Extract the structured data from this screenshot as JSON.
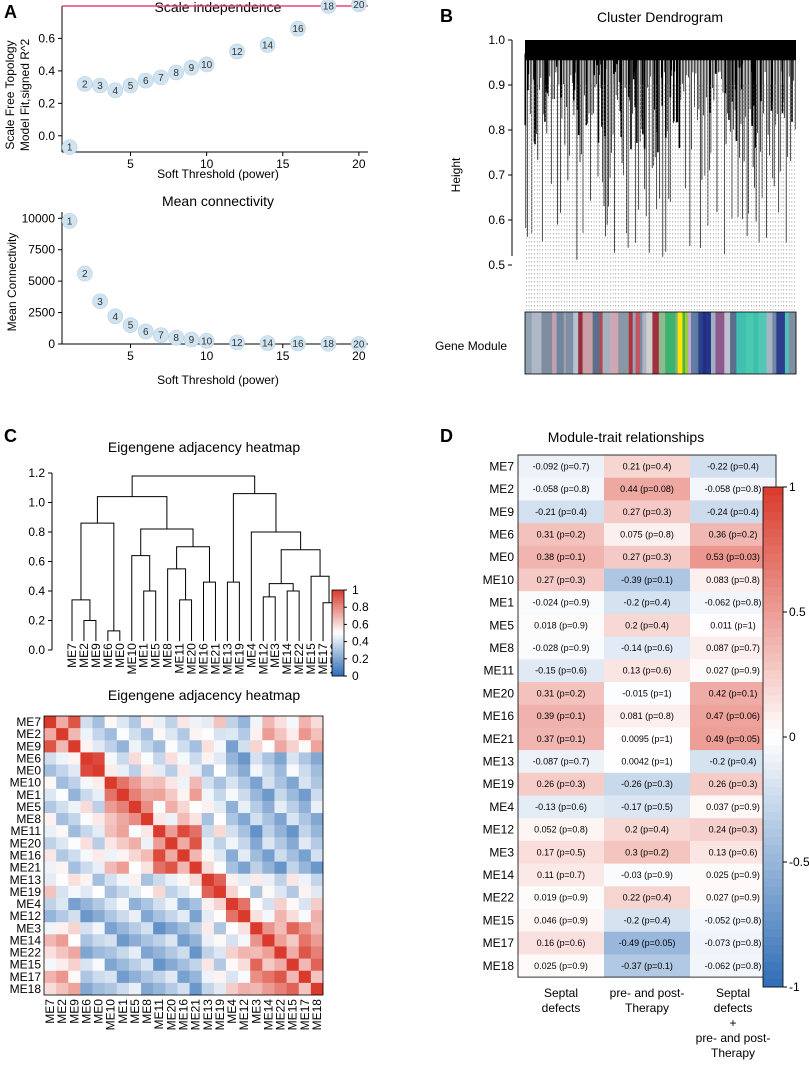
{
  "panel_letters": {
    "a": "A",
    "b": "B",
    "c": "C",
    "d": "D"
  },
  "chart_data": [
    {
      "id": "scale_independence",
      "type": "scatter",
      "title": "Scale independence",
      "xlabel": "Soft Threshold (power)",
      "ylabel_lines": [
        "Scale Free Topology",
        "Model Fit,signed R^2"
      ],
      "xlim": [
        0.5,
        20.6
      ],
      "ylim": [
        -0.1,
        0.8
      ],
      "xticks": [
        5,
        10,
        15,
        20
      ],
      "xticklabels": [
        "5",
        "10",
        "15",
        "20"
      ],
      "yticks": [
        0.0,
        0.2,
        0.4,
        0.6
      ],
      "yticklabels": [
        "0.0",
        "0.2",
        "0.4",
        "0.6"
      ],
      "threshold_line": 0.8,
      "threshold_color": "#e8467c",
      "point_color": "#cfe3f0",
      "points": [
        {
          "x": 1,
          "y": -0.07,
          "label": "1"
        },
        {
          "x": 2,
          "y": 0.32,
          "label": "2"
        },
        {
          "x": 3,
          "y": 0.31,
          "label": "3"
        },
        {
          "x": 4,
          "y": 0.28,
          "label": "4"
        },
        {
          "x": 5,
          "y": 0.31,
          "label": "5"
        },
        {
          "x": 6,
          "y": 0.34,
          "label": "6"
        },
        {
          "x": 7,
          "y": 0.36,
          "label": "7"
        },
        {
          "x": 8,
          "y": 0.39,
          "label": "8"
        },
        {
          "x": 9,
          "y": 0.42,
          "label": "9"
        },
        {
          "x": 10,
          "y": 0.44,
          "label": "10"
        },
        {
          "x": 12,
          "y": 0.52,
          "label": "12"
        },
        {
          "x": 14,
          "y": 0.56,
          "label": "14"
        },
        {
          "x": 16,
          "y": 0.66,
          "label": "16"
        },
        {
          "x": 18,
          "y": 0.8,
          "label": "18"
        },
        {
          "x": 20,
          "y": 0.81,
          "label": "20"
        }
      ]
    },
    {
      "id": "mean_connectivity",
      "type": "scatter",
      "title": "Mean connectivity",
      "xlabel": "Soft Threshold (power)",
      "ylabel_lines": [
        "Mean Connectivity"
      ],
      "xlim": [
        0.5,
        20.6
      ],
      "ylim": [
        0,
        10500
      ],
      "xticks": [
        5,
        10,
        15,
        20
      ],
      "xticklabels": [
        "5",
        "10",
        "15",
        "20"
      ],
      "yticks": [
        0,
        2500,
        5000,
        7500,
        10000
      ],
      "yticklabels": [
        "0",
        "2500",
        "5000",
        "7500",
        "10000"
      ],
      "point_color": "#cfe3f0",
      "points": [
        {
          "x": 1,
          "y": 9800,
          "label": "1"
        },
        {
          "x": 2,
          "y": 5600,
          "label": "2"
        },
        {
          "x": 3,
          "y": 3400,
          "label": "3"
        },
        {
          "x": 4,
          "y": 2200,
          "label": "4"
        },
        {
          "x": 5,
          "y": 1500,
          "label": "5"
        },
        {
          "x": 6,
          "y": 1000,
          "label": "6"
        },
        {
          "x": 7,
          "y": 700,
          "label": "7"
        },
        {
          "x": 8,
          "y": 500,
          "label": "8"
        },
        {
          "x": 9,
          "y": 350,
          "label": "9"
        },
        {
          "x": 10,
          "y": 250,
          "label": "10"
        },
        {
          "x": 12,
          "y": 130,
          "label": "12"
        },
        {
          "x": 14,
          "y": 70,
          "label": "14"
        },
        {
          "x": 16,
          "y": 40,
          "label": "16"
        },
        {
          "x": 18,
          "y": 20,
          "label": "18"
        },
        {
          "x": 20,
          "y": 10,
          "label": "20"
        }
      ]
    },
    {
      "id": "cluster_dendrogram",
      "type": "dendrogram",
      "title": "Cluster Dendrogram",
      "ylabel": "Height",
      "ylim": [
        0.4,
        1.0
      ],
      "yticks": [
        0.5,
        0.6,
        0.7,
        0.8,
        0.9,
        1.0
      ],
      "yticklabels": [
        "0.5",
        "0.6",
        "0.7",
        "0.8",
        "0.9",
        "1.0"
      ],
      "color_bar_label": "Gene Module",
      "module_colors": [
        "#8fa3b0",
        "#b0b8c8",
        "#7f8da0",
        "#c5a0b0",
        "#6f86a0",
        "#a0a0a0",
        "#808fa8",
        "#b5c2cf",
        "#9b2c3c",
        "#c9a0a8",
        "#5d6e8a",
        "#b4464f",
        "#a6b1be",
        "#d1a6b4",
        "#8a98a6",
        "#b22f3f",
        "#94a8b8",
        "#c45363",
        "#7b8ba0",
        "#aab5c3",
        "#d0d0d0",
        "#a03040",
        "#8fbc8f",
        "#3cb371",
        "#7fb07f",
        "#ffe600",
        "#4caf50",
        "#9acd32",
        "#c3aacb",
        "#5f7fa8",
        "#5e7a9a",
        "#2a3f8f",
        "#1f2f7a",
        "#27348b",
        "#a0b0c0",
        "#8e5a8e",
        "#c0c0d0",
        "#5a6e8e",
        "#40c0b0",
        "#48c9b0",
        "#3fbfad",
        "#52c7b8",
        "#a9b4c2",
        "#6e8aa8",
        "#2d3c8c",
        "#50c0b8",
        "#7d8fa3"
      ]
    },
    {
      "id": "eigengene_dendrogram",
      "type": "dendrogram",
      "title": "Eigengene adjacency heatmap",
      "ylim": [
        0,
        1.2
      ],
      "yticks": [
        0.0,
        0.2,
        0.4,
        0.6,
        0.8,
        1.0,
        1.2
      ],
      "yticklabels": [
        "0.0",
        "0.2",
        "0.4",
        "0.6",
        "0.8",
        "1.0",
        "1.2"
      ],
      "leaves": [
        "ME7",
        "ME2",
        "ME9",
        "ME6",
        "ME0",
        "ME10",
        "ME1",
        "ME5",
        "ME8",
        "ME11",
        "ME20",
        "ME16",
        "ME21",
        "ME13",
        "ME19",
        "ME4",
        "ME12",
        "ME3",
        "ME14",
        "ME22",
        "ME15",
        "ME17",
        "ME18"
      ],
      "merges": [
        {
          "a": "L1",
          "b": "L2",
          "h": 0.2
        },
        {
          "a": "L0",
          "b": "M0",
          "h": 0.34
        },
        {
          "a": "L3",
          "b": "L4",
          "h": 0.13
        },
        {
          "a": "M1",
          "b": "M2",
          "h": 0.86
        },
        {
          "a": "L6",
          "b": "L7",
          "h": 0.4
        },
        {
          "a": "L5",
          "b": "M4",
          "h": 0.64
        },
        {
          "a": "L9",
          "b": "L10",
          "h": 0.34
        },
        {
          "a": "L8",
          "b": "M6",
          "h": 0.55
        },
        {
          "a": "L11",
          "b": "L12",
          "h": 0.46
        },
        {
          "a": "M7",
          "b": "M8",
          "h": 0.7
        },
        {
          "a": "M5",
          "b": "M9",
          "h": 0.82
        },
        {
          "a": "M3",
          "b": "M10",
          "h": 1.04
        },
        {
          "a": "L13",
          "b": "L14",
          "h": 0.46
        },
        {
          "a": "L16",
          "b": "L17",
          "h": 0.36
        },
        {
          "a": "L18",
          "b": "L19",
          "h": 0.4
        },
        {
          "a": "M13",
          "b": "M14",
          "h": 0.45
        },
        {
          "a": "L21",
          "b": "L22",
          "h": 0.32
        },
        {
          "a": "L20",
          "b": "M16",
          "h": 0.5
        },
        {
          "a": "M15",
          "b": "M17",
          "h": 0.68
        },
        {
          "a": "L15",
          "b": "M18",
          "h": 0.8
        },
        {
          "a": "M12",
          "b": "M19",
          "h": 1.06
        },
        {
          "a": "M11",
          "b": "M20",
          "h": 1.18
        }
      ]
    },
    {
      "id": "eigengene_heatmap",
      "type": "heatmap",
      "title": "Eigengene adjacency heatmap",
      "labels": [
        "ME7",
        "ME2",
        "ME9",
        "ME6",
        "ME0",
        "ME10",
        "ME1",
        "ME5",
        "ME8",
        "ME11",
        "ME20",
        "ME16",
        "ME21",
        "ME13",
        "ME19",
        "ME4",
        "ME12",
        "ME3",
        "ME14",
        "ME22",
        "ME15",
        "ME17",
        "ME18"
      ],
      "clusters": [
        0,
        0,
        0,
        1,
        1,
        2,
        2,
        2,
        2,
        3,
        3,
        3,
        3,
        4,
        4,
        5,
        5,
        6,
        6,
        6,
        6,
        6,
        6
      ],
      "cluster_affinity": [
        [
          0.82,
          0.38,
          0.4,
          0.42,
          0.5,
          0.3,
          0.62
        ],
        [
          0.38,
          0.84,
          0.46,
          0.44,
          0.38,
          0.3,
          0.34
        ],
        [
          0.4,
          0.46,
          0.8,
          0.6,
          0.42,
          0.32,
          0.3
        ],
        [
          0.42,
          0.44,
          0.6,
          0.82,
          0.44,
          0.34,
          0.28
        ],
        [
          0.5,
          0.38,
          0.42,
          0.44,
          0.78,
          0.52,
          0.42
        ],
        [
          0.3,
          0.3,
          0.32,
          0.34,
          0.52,
          0.8,
          0.55
        ],
        [
          0.62,
          0.34,
          0.3,
          0.28,
          0.42,
          0.55,
          0.78
        ]
      ],
      "colorbar": {
        "min": 0,
        "max": 1,
        "ticks": [
          0,
          0.2,
          0.4,
          0.6,
          0.8,
          1
        ],
        "ticklabels": [
          "0",
          "0.2",
          "0.4",
          "0.6",
          "0.8",
          "1"
        ]
      }
    },
    {
      "id": "module_trait",
      "type": "heatmap",
      "title": "Module-trait relationships",
      "rows": [
        "ME7",
        "ME2",
        "ME9",
        "ME6",
        "ME0",
        "ME10",
        "ME1",
        "ME5",
        "ME8",
        "ME11",
        "ME20",
        "ME16",
        "ME21",
        "ME13",
        "ME19",
        "ME4",
        "ME12",
        "ME3",
        "ME14",
        "ME22",
        "ME15",
        "ME17",
        "ME18"
      ],
      "columns": [
        {
          "lines": [
            "Septal",
            "defects"
          ]
        },
        {
          "lines": [
            "pre- and post-",
            "Therapy"
          ]
        },
        {
          "lines": [
            "Septal",
            "defects",
            "+",
            "pre- and post-",
            "Therapy"
          ]
        }
      ],
      "values": [
        [
          -0.092,
          0.21,
          -0.22
        ],
        [
          -0.058,
          0.44,
          -0.058
        ],
        [
          -0.21,
          0.27,
          -0.24
        ],
        [
          0.31,
          0.075,
          0.36
        ],
        [
          0.38,
          0.27,
          0.53
        ],
        [
          0.27,
          -0.39,
          0.083
        ],
        [
          -0.024,
          -0.2,
          -0.062
        ],
        [
          0.018,
          0.2,
          0.011
        ],
        [
          -0.028,
          -0.14,
          0.087
        ],
        [
          -0.15,
          0.13,
          0.027
        ],
        [
          0.31,
          -0.015,
          0.42
        ],
        [
          0.39,
          0.081,
          0.47
        ],
        [
          0.37,
          0.0095,
          0.49
        ],
        [
          -0.087,
          0.0042,
          -0.2
        ],
        [
          0.26,
          -0.26,
          0.26
        ],
        [
          -0.13,
          -0.17,
          0.037
        ],
        [
          0.052,
          0.2,
          0.24
        ],
        [
          0.17,
          0.3,
          0.13
        ],
        [
          0.11,
          -0.03,
          0.025
        ],
        [
          0.019,
          0.22,
          0.027
        ],
        [
          0.046,
          -0.2,
          -0.052
        ],
        [
          0.16,
          -0.49,
          -0.073
        ],
        [
          0.025,
          -0.37,
          -0.062
        ]
      ],
      "cell_text": [
        [
          "-0.092 (p=0.7)",
          "0.21 (p=0.4)",
          "-0.22 (p=0.4)"
        ],
        [
          "-0.058 (p=0.8)",
          "0.44 (p=0.08)",
          "-0.058 (p=0.8)"
        ],
        [
          "-0.21 (p=0.4)",
          "0.27 (p=0.3)",
          "-0.24 (p=0.4)"
        ],
        [
          "0.31 (p=0.2)",
          "0.075 (p=0.8)",
          "0.36 (p=0.2)"
        ],
        [
          "0.38 (p=0.1)",
          "0.27 (p=0.3)",
          "0.53 (p=0.03)"
        ],
        [
          "0.27 (p=0.3)",
          "-0.39 (p=0.1)",
          "0.083 (p=0.8)"
        ],
        [
          "-0.024 (p=0.9)",
          "-0.2 (p=0.4)",
          "-0.062 (p=0.8)"
        ],
        [
          "0.018 (p=0.9)",
          "0.2 (p=0.4)",
          "0.011 (p=1)"
        ],
        [
          "-0.028 (p=0.9)",
          "-0.14 (p=0.6)",
          "0.087 (p=0.7)"
        ],
        [
          "-0.15 (p=0.6)",
          "0.13 (p=0.6)",
          "0.027 (p=0.9)"
        ],
        [
          "0.31 (p=0.2)",
          "-0.015 (p=1)",
          "0.42 (p=0.1)"
        ],
        [
          "0.39 (p=0.1)",
          "0.081 (p=0.8)",
          "0.47 (p=0.06)"
        ],
        [
          "0.37 (p=0.1)",
          "0.0095 (p=1)",
          "0.49 (p=0.05)"
        ],
        [
          "-0.087 (p=0.7)",
          "0.0042 (p=1)",
          "-0.2 (p=0.4)"
        ],
        [
          "0.26 (p=0.3)",
          "-0.26 (p=0.3)",
          "0.26 (p=0.3)"
        ],
        [
          "-0.13 (p=0.6)",
          "-0.17 (p=0.5)",
          "0.037 (p=0.9)"
        ],
        [
          "0.052 (p=0.8)",
          "0.2 (p=0.4)",
          "0.24 (p=0.3)"
        ],
        [
          "0.17 (p=0.5)",
          "0.3 (p=0.2)",
          "0.13 (p=0.6)"
        ],
        [
          "0.11 (p=0.7)",
          "-0.03 (p=0.9)",
          "0.025 (p=0.9)"
        ],
        [
          "0.019 (p=0.9)",
          "0.22 (p=0.4)",
          "0.027 (p=0.9)"
        ],
        [
          "0.046 (p=0.9)",
          "-0.2 (p=0.4)",
          "-0.052 (p=0.8)"
        ],
        [
          "0.16 (p=0.6)",
          "-0.49 (p=0.05)",
          "-0.073 (p=0.8)"
        ],
        [
          "0.025 (p=0.9)",
          "-0.37 (p=0.1)",
          "-0.062 (p=0.8)"
        ]
      ],
      "colorbar": {
        "min": -1,
        "max": 1,
        "ticks": [
          -1,
          -0.5,
          0,
          0.5,
          1
        ],
        "ticklabels": [
          "-1",
          "-0.5",
          "0",
          "0.5",
          "1"
        ]
      },
      "colors": {
        "neg": "#2f6db5",
        "mid": "#ffffff",
        "pos": "#d93a2b"
      }
    }
  ]
}
